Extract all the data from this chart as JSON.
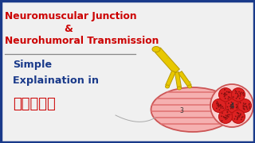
{
  "bg_color": "#f0f0f0",
  "border_color": "#1a3a8a",
  "title_line1": "Neuromuscular Junction",
  "title_ampersand": "&",
  "title_line3": "Neurohumoral Transmission",
  "title_color": "#cc0000",
  "subtitle_line1": "Simple",
  "subtitle_line2": "Explaination in",
  "subtitle_color": "#1a3a8a",
  "hindi_text": "हिंदी",
  "hindi_color": "#cc0000",
  "divider_color": "#888888",
  "nerve_color": "#e8c800",
  "nerve_edge": "#b89800",
  "muscle_fill": "#f5b0b0",
  "muscle_stripe": "#e07070",
  "muscle_edge": "#cc5555",
  "cs_fill": "#fad0d0",
  "cs_edge": "#cc5555",
  "fiber_fill": "#dd2222",
  "fiber_edge": "#bb1111",
  "fiber_dot": "#881111",
  "label_color": "#333333",
  "label2_color": "#cccc00",
  "label1_color": "#cccc00",
  "curve_color": "#aaaaaa"
}
